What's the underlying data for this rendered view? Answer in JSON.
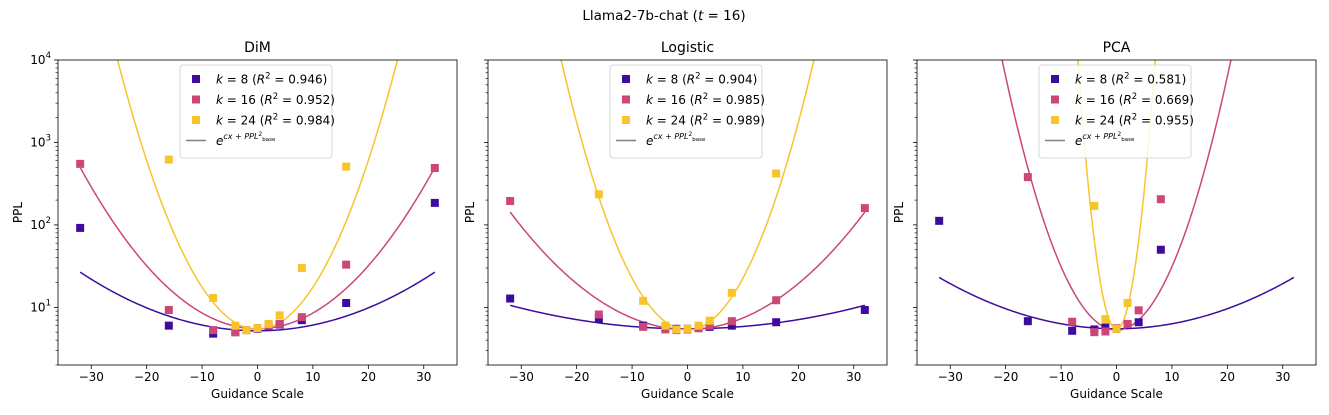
{
  "suptitle": "Llama2-7b-chat (t = 16)",
  "colors": {
    "k8": "#3d0c9e",
    "k16": "#cc4778",
    "k24": "#f7c52b",
    "fit_legend": "#808080"
  },
  "chart_data": [
    {
      "type": "scatter",
      "title": "DiM",
      "xlabel": "Guidance Scale",
      "ylabel": "PPL",
      "yscale": "log",
      "xlim": [
        -36,
        36
      ],
      "ylim": [
        2,
        10000
      ],
      "legend_placement": "top-center",
      "legend": [
        "k = 8 (R² = 0.946)",
        "k = 16 (R² = 0.952)",
        "k = 24 (R² = 0.984)",
        "e^{cx² + PPL_base}"
      ],
      "x_ticks": [
        -30,
        -20,
        -10,
        0,
        10,
        20,
        30
      ],
      "y_ticks": [
        "10^1",
        "10^2",
        "10^3",
        "10^4"
      ],
      "series": [
        {
          "name": "k = 8",
          "r2": 0.946,
          "fit_c": 0.0016,
          "ppl_base": 5.2,
          "points": [
            [
              -32,
              92
            ],
            [
              -16,
              6
            ],
            [
              -8,
              4.8
            ],
            [
              -4,
              5
            ],
            [
              -2,
              5.3
            ],
            [
              0,
              5.5
            ],
            [
              2,
              5.8
            ],
            [
              4,
              6.2
            ],
            [
              8,
              7
            ],
            [
              16,
              11.3
            ],
            [
              32,
              185
            ]
          ]
        },
        {
          "name": "k = 16",
          "r2": 0.952,
          "fit_c": 0.0044,
          "ppl_base": 5.5,
          "points": [
            [
              -32,
              550
            ],
            [
              -16,
              9.3
            ],
            [
              -8,
              5.3
            ],
            [
              -4,
              5
            ],
            [
              -2,
              5.3
            ],
            [
              0,
              5.6
            ],
            [
              2,
              6
            ],
            [
              4,
              6.3
            ],
            [
              8,
              7.6
            ],
            [
              16,
              33
            ],
            [
              32,
              490
            ]
          ]
        },
        {
          "name": "k = 24",
          "r2": 0.984,
          "fit_c": 0.0118,
          "ppl_base": 5.4,
          "points": [
            [
              -16,
              620
            ],
            [
              -8,
              13
            ],
            [
              -4,
              6
            ],
            [
              -2,
              5.3
            ],
            [
              0,
              5.6
            ],
            [
              2,
              6.3
            ],
            [
              4,
              8
            ],
            [
              8,
              30
            ],
            [
              16,
              510
            ]
          ]
        }
      ]
    },
    {
      "type": "scatter",
      "title": "Logistic",
      "xlabel": "Guidance Scale",
      "ylabel": "PPL",
      "yscale": "log",
      "xlim": [
        -36,
        36
      ],
      "ylim": [
        2,
        10000
      ],
      "legend_placement": "top-center",
      "legend": [
        "k = 8 (R² = 0.904)",
        "k = 16 (R² = 0.985)",
        "k = 24 (R² = 0.989)",
        "e^{cx² + PPL_base}"
      ],
      "x_ticks": [
        -30,
        -20,
        -10,
        0,
        10,
        20,
        30
      ],
      "y_ticks": [
        "10^1",
        "10^2",
        "10^3",
        "10^4"
      ],
      "series": [
        {
          "name": "k = 8",
          "r2": 0.904,
          "fit_c": 0.00064,
          "ppl_base": 5.5,
          "points": [
            [
              -32,
              12.8
            ],
            [
              -16,
              7.3
            ],
            [
              -8,
              6
            ],
            [
              -4,
              5.7
            ],
            [
              -2,
              5.5
            ],
            [
              0,
              5.5
            ],
            [
              2,
              5.6
            ],
            [
              4,
              5.8
            ],
            [
              8,
              6
            ],
            [
              16,
              6.6
            ],
            [
              32,
              9.3
            ]
          ]
        },
        {
          "name": "k = 16",
          "r2": 0.985,
          "fit_c": 0.0032,
          "ppl_base": 5.4,
          "points": [
            [
              -32,
              195
            ],
            [
              -16,
              8.2
            ],
            [
              -8,
              5.8
            ],
            [
              -4,
              5.4
            ],
            [
              -2,
              5.3
            ],
            [
              0,
              5.4
            ],
            [
              2,
              5.6
            ],
            [
              4,
              6
            ],
            [
              8,
              6.8
            ],
            [
              16,
              12.2
            ],
            [
              32,
              160
            ]
          ]
        },
        {
          "name": "k = 24",
          "r2": 0.989,
          "fit_c": 0.0145,
          "ppl_base": 5.3,
          "points": [
            [
              -16,
              235
            ],
            [
              -8,
              12
            ],
            [
              -4,
              6
            ],
            [
              -2,
              5.4
            ],
            [
              0,
              5.5
            ],
            [
              2,
              6
            ],
            [
              4,
              6.9
            ],
            [
              8,
              15
            ],
            [
              16,
              420
            ]
          ]
        }
      ]
    },
    {
      "type": "scatter",
      "title": "PCA",
      "xlabel": "Guidance Scale",
      "ylabel": "PPL",
      "yscale": "log",
      "xlim": [
        -36,
        36
      ],
      "ylim": [
        2,
        10000
      ],
      "legend_placement": "top-center",
      "legend": [
        "k = 8 (R² = 0.581)",
        "k = 16 (R² = 0.669)",
        "k = 24 (R² = 0.955)",
        "e^{cx² + PPL_base}"
      ],
      "x_ticks": [
        -30,
        -20,
        -10,
        0,
        10,
        20,
        30
      ],
      "y_ticks": [
        "10^1",
        "10^2",
        "10^3",
        "10^4"
      ],
      "series": [
        {
          "name": "k = 8",
          "r2": 0.581,
          "fit_c": 0.0014,
          "ppl_base": 5.5,
          "points": [
            [
              -32,
              112
            ],
            [
              -16,
              6.8
            ],
            [
              -8,
              5.2
            ],
            [
              -4,
              5.4
            ],
            [
              -2,
              5.7
            ],
            [
              0,
              5.5
            ],
            [
              2,
              6.2
            ],
            [
              4,
              6.6
            ],
            [
              8,
              50
            ]
          ]
        },
        {
          "name": "k = 16",
          "r2": 0.669,
          "fit_c": 0.0177,
          "ppl_base": 5.3,
          "points": [
            [
              -16,
              380
            ],
            [
              -8,
              6.7
            ],
            [
              -4,
              5
            ],
            [
              -2,
              5.1
            ],
            [
              0,
              5.6
            ],
            [
              2,
              6.3
            ],
            [
              4,
              9.2
            ],
            [
              8,
              205
            ]
          ]
        },
        {
          "name": "k = 24",
          "r2": 0.955,
          "fit_c": 0.155,
          "ppl_base": 5.4,
          "points": [
            [
              -4,
              170
            ],
            [
              -2,
              7.2
            ],
            [
              0,
              5.5
            ],
            [
              2,
              11.3
            ]
          ]
        }
      ]
    }
  ]
}
